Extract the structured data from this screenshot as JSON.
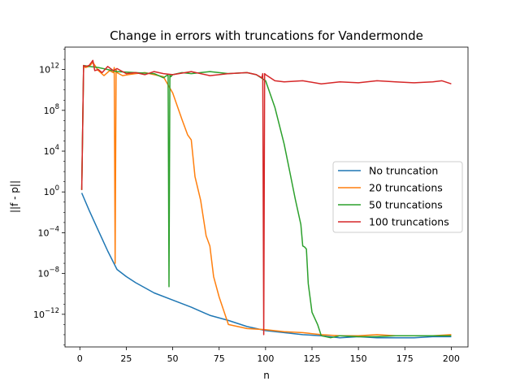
{
  "chart_data": {
    "type": "line",
    "title": "Change in errors with truncations for Vandermonde",
    "xlabel": "n",
    "ylabel": "||f - p||",
    "xlim": [
      -8,
      209
    ],
    "ylog": true,
    "ylim_exp": [
      -15.2,
      14.2
    ],
    "xticks": [
      0,
      25,
      50,
      75,
      100,
      125,
      150,
      175,
      200
    ],
    "xtick_labels": [
      "0",
      "25",
      "50",
      "75",
      "100",
      "125",
      "150",
      "175",
      "200"
    ],
    "yticks_exp": [
      -12,
      -8,
      -4,
      0,
      4,
      8,
      12
    ],
    "ytick_base": "10",
    "ytick_exponents": [
      "−12",
      "−8",
      "−4",
      "0",
      "4",
      "8",
      "12"
    ],
    "legend_position": "center-right",
    "series": [
      {
        "name": "No truncation",
        "color": "#1f77b4",
        "x": [
          1,
          5,
          10,
          15,
          20,
          25,
          30,
          40,
          50,
          60,
          70,
          80,
          90,
          100,
          110,
          120,
          130,
          140,
          150,
          160,
          170,
          180,
          190,
          200
        ],
        "y_exp": [
          -0.1,
          -1.8,
          -3.8,
          -5.8,
          -7.6,
          -8.3,
          -8.9,
          -9.9,
          -10.6,
          -11.3,
          -12.1,
          -12.6,
          -13.2,
          -13.6,
          -13.8,
          -14.0,
          -14.1,
          -14.3,
          -14.2,
          -14.3,
          -14.3,
          -14.3,
          -14.2,
          -14.2
        ]
      },
      {
        "name": "20 truncations",
        "color": "#ff7f0e",
        "x": [
          1,
          2,
          3,
          5,
          7,
          10,
          13,
          16,
          18,
          18.5,
          19,
          19.5,
          20,
          23,
          26,
          30,
          35,
          40,
          45,
          50,
          55,
          58,
          60,
          62,
          65,
          68,
          70,
          72,
          75,
          80,
          90,
          100,
          110,
          120,
          130,
          140,
          150,
          160,
          170,
          180,
          190,
          200
        ],
        "y_exp": [
          0.2,
          12.4,
          12.2,
          12.3,
          12.7,
          11.9,
          11.4,
          11.9,
          11.7,
          12.2,
          -7.0,
          12.0,
          11.7,
          11.4,
          11.5,
          11.6,
          11.7,
          11.5,
          11.3,
          9.7,
          7.1,
          5.6,
          5.1,
          1.5,
          -0.8,
          -4.3,
          -5.3,
          -8.3,
          -10.3,
          -13.0,
          -13.4,
          -13.5,
          -13.7,
          -13.8,
          -14.0,
          -14.1,
          -14.1,
          -14.0,
          -14.1,
          -14.1,
          -14.1,
          -14.0
        ]
      },
      {
        "name": "50 truncations",
        "color": "#2ca02c",
        "x": [
          1,
          2,
          5,
          10,
          20,
          30,
          40,
          45,
          47.5,
          48,
          48.5,
          49,
          49.5,
          50,
          55,
          60,
          70,
          80,
          90,
          95,
          100,
          105,
          110,
          113,
          116,
          119,
          120,
          121,
          122,
          123,
          125,
          128,
          130,
          135,
          140,
          150,
          160,
          170,
          180,
          190,
          200
        ],
        "y_exp": [
          0.2,
          12.4,
          12.3,
          12.2,
          11.8,
          11.7,
          11.6,
          11.2,
          11.5,
          -9.3,
          11.5,
          11.3,
          11.4,
          11.5,
          11.7,
          11.6,
          11.8,
          11.6,
          11.7,
          11.5,
          10.9,
          8.3,
          4.7,
          2.0,
          -0.7,
          -3.2,
          -5.3,
          -5.4,
          -5.6,
          -9.0,
          -11.8,
          -13.0,
          -14.1,
          -14.3,
          -14.1,
          -14.2,
          -14.2,
          -14.1,
          -14.1,
          -14.1,
          -14.1
        ]
      },
      {
        "name": "100 truncations",
        "color": "#d62728",
        "x": [
          1,
          2,
          3,
          5,
          7,
          8,
          10,
          12,
          15,
          18,
          20,
          25,
          30,
          35,
          40,
          45,
          50,
          60,
          70,
          80,
          90,
          95,
          98,
          98.5,
          99,
          99.5,
          100,
          105,
          110,
          120,
          130,
          140,
          150,
          160,
          170,
          180,
          190,
          195,
          200
        ],
        "y_exp": [
          0.2,
          12.4,
          12.3,
          12.4,
          12.9,
          11.9,
          12.0,
          11.7,
          12.3,
          11.9,
          12.1,
          11.6,
          11.7,
          11.5,
          11.8,
          11.6,
          11.5,
          11.8,
          11.4,
          11.6,
          11.7,
          11.5,
          11.2,
          11.6,
          -14.0,
          11.6,
          11.5,
          10.9,
          10.8,
          10.9,
          10.6,
          10.8,
          10.7,
          10.9,
          10.8,
          10.7,
          10.8,
          10.9,
          10.6
        ]
      }
    ]
  }
}
